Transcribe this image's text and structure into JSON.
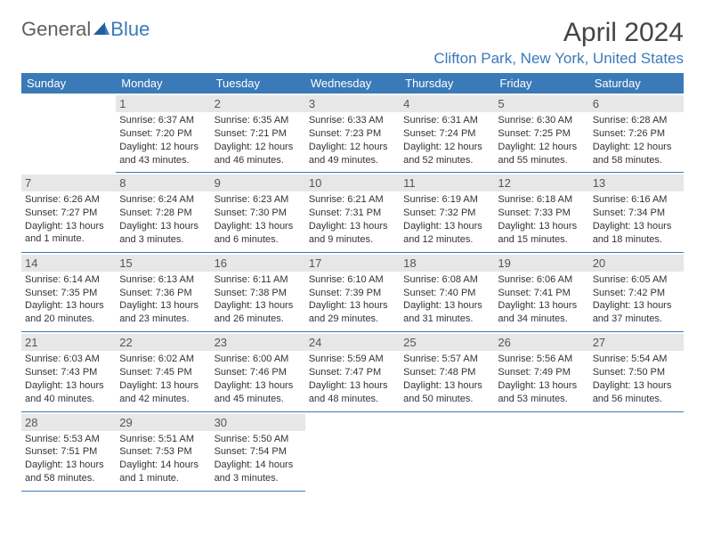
{
  "brand": {
    "part1": "General",
    "part2": "Blue",
    "logo_color": "#3a7ab8"
  },
  "title": "April 2024",
  "location": "Clifton Park, New York, United States",
  "header_bg": "#3a7ab8",
  "header_fg": "#ffffff",
  "daynum_bg": "#e7e7e7",
  "border_color": "#3a7ab8",
  "weekdays": [
    "Sunday",
    "Monday",
    "Tuesday",
    "Wednesday",
    "Thursday",
    "Friday",
    "Saturday"
  ],
  "weeks": [
    [
      null,
      {
        "n": "1",
        "sr": "Sunrise: 6:37 AM",
        "ss": "Sunset: 7:20 PM",
        "dl": "Daylight: 12 hours and 43 minutes."
      },
      {
        "n": "2",
        "sr": "Sunrise: 6:35 AM",
        "ss": "Sunset: 7:21 PM",
        "dl": "Daylight: 12 hours and 46 minutes."
      },
      {
        "n": "3",
        "sr": "Sunrise: 6:33 AM",
        "ss": "Sunset: 7:23 PM",
        "dl": "Daylight: 12 hours and 49 minutes."
      },
      {
        "n": "4",
        "sr": "Sunrise: 6:31 AM",
        "ss": "Sunset: 7:24 PM",
        "dl": "Daylight: 12 hours and 52 minutes."
      },
      {
        "n": "5",
        "sr": "Sunrise: 6:30 AM",
        "ss": "Sunset: 7:25 PM",
        "dl": "Daylight: 12 hours and 55 minutes."
      },
      {
        "n": "6",
        "sr": "Sunrise: 6:28 AM",
        "ss": "Sunset: 7:26 PM",
        "dl": "Daylight: 12 hours and 58 minutes."
      }
    ],
    [
      {
        "n": "7",
        "sr": "Sunrise: 6:26 AM",
        "ss": "Sunset: 7:27 PM",
        "dl": "Daylight: 13 hours and 1 minute."
      },
      {
        "n": "8",
        "sr": "Sunrise: 6:24 AM",
        "ss": "Sunset: 7:28 PM",
        "dl": "Daylight: 13 hours and 3 minutes."
      },
      {
        "n": "9",
        "sr": "Sunrise: 6:23 AM",
        "ss": "Sunset: 7:30 PM",
        "dl": "Daylight: 13 hours and 6 minutes."
      },
      {
        "n": "10",
        "sr": "Sunrise: 6:21 AM",
        "ss": "Sunset: 7:31 PM",
        "dl": "Daylight: 13 hours and 9 minutes."
      },
      {
        "n": "11",
        "sr": "Sunrise: 6:19 AM",
        "ss": "Sunset: 7:32 PM",
        "dl": "Daylight: 13 hours and 12 minutes."
      },
      {
        "n": "12",
        "sr": "Sunrise: 6:18 AM",
        "ss": "Sunset: 7:33 PM",
        "dl": "Daylight: 13 hours and 15 minutes."
      },
      {
        "n": "13",
        "sr": "Sunrise: 6:16 AM",
        "ss": "Sunset: 7:34 PM",
        "dl": "Daylight: 13 hours and 18 minutes."
      }
    ],
    [
      {
        "n": "14",
        "sr": "Sunrise: 6:14 AM",
        "ss": "Sunset: 7:35 PM",
        "dl": "Daylight: 13 hours and 20 minutes."
      },
      {
        "n": "15",
        "sr": "Sunrise: 6:13 AM",
        "ss": "Sunset: 7:36 PM",
        "dl": "Daylight: 13 hours and 23 minutes."
      },
      {
        "n": "16",
        "sr": "Sunrise: 6:11 AM",
        "ss": "Sunset: 7:38 PM",
        "dl": "Daylight: 13 hours and 26 minutes."
      },
      {
        "n": "17",
        "sr": "Sunrise: 6:10 AM",
        "ss": "Sunset: 7:39 PM",
        "dl": "Daylight: 13 hours and 29 minutes."
      },
      {
        "n": "18",
        "sr": "Sunrise: 6:08 AM",
        "ss": "Sunset: 7:40 PM",
        "dl": "Daylight: 13 hours and 31 minutes."
      },
      {
        "n": "19",
        "sr": "Sunrise: 6:06 AM",
        "ss": "Sunset: 7:41 PM",
        "dl": "Daylight: 13 hours and 34 minutes."
      },
      {
        "n": "20",
        "sr": "Sunrise: 6:05 AM",
        "ss": "Sunset: 7:42 PM",
        "dl": "Daylight: 13 hours and 37 minutes."
      }
    ],
    [
      {
        "n": "21",
        "sr": "Sunrise: 6:03 AM",
        "ss": "Sunset: 7:43 PM",
        "dl": "Daylight: 13 hours and 40 minutes."
      },
      {
        "n": "22",
        "sr": "Sunrise: 6:02 AM",
        "ss": "Sunset: 7:45 PM",
        "dl": "Daylight: 13 hours and 42 minutes."
      },
      {
        "n": "23",
        "sr": "Sunrise: 6:00 AM",
        "ss": "Sunset: 7:46 PM",
        "dl": "Daylight: 13 hours and 45 minutes."
      },
      {
        "n": "24",
        "sr": "Sunrise: 5:59 AM",
        "ss": "Sunset: 7:47 PM",
        "dl": "Daylight: 13 hours and 48 minutes."
      },
      {
        "n": "25",
        "sr": "Sunrise: 5:57 AM",
        "ss": "Sunset: 7:48 PM",
        "dl": "Daylight: 13 hours and 50 minutes."
      },
      {
        "n": "26",
        "sr": "Sunrise: 5:56 AM",
        "ss": "Sunset: 7:49 PM",
        "dl": "Daylight: 13 hours and 53 minutes."
      },
      {
        "n": "27",
        "sr": "Sunrise: 5:54 AM",
        "ss": "Sunset: 7:50 PM",
        "dl": "Daylight: 13 hours and 56 minutes."
      }
    ],
    [
      {
        "n": "28",
        "sr": "Sunrise: 5:53 AM",
        "ss": "Sunset: 7:51 PM",
        "dl": "Daylight: 13 hours and 58 minutes."
      },
      {
        "n": "29",
        "sr": "Sunrise: 5:51 AM",
        "ss": "Sunset: 7:53 PM",
        "dl": "Daylight: 14 hours and 1 minute."
      },
      {
        "n": "30",
        "sr": "Sunrise: 5:50 AM",
        "ss": "Sunset: 7:54 PM",
        "dl": "Daylight: 14 hours and 3 minutes."
      },
      null,
      null,
      null,
      null
    ]
  ]
}
